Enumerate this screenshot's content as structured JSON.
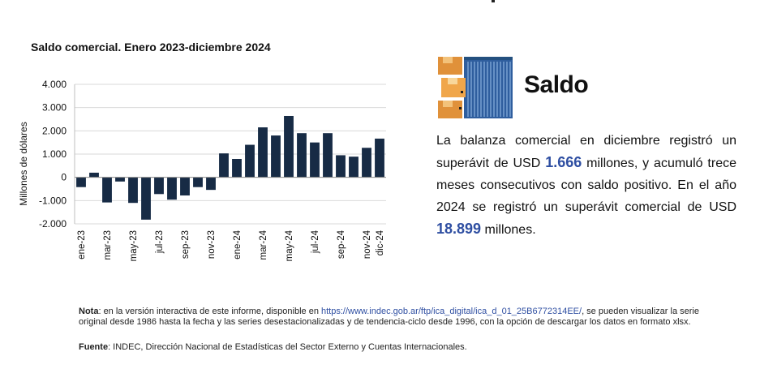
{
  "colors": {
    "bar": "#172b45",
    "highlight": "#2f4fa2",
    "grid": "#d9d9d9",
    "axis": "#333333"
  },
  "chart_data": {
    "type": "bar",
    "title": "Saldo comercial. Enero 2023-diciembre 2024",
    "xlabel": "",
    "ylabel": "Millones de dólares",
    "ylim": [
      -2000,
      4000
    ],
    "yticks": [
      -2000,
      -1000,
      0,
      1000,
      2000,
      3000,
      4000
    ],
    "ytick_labels": [
      "-2.000",
      "-1.000",
      "0",
      "1.000",
      "2.000",
      "3.000",
      "4.000"
    ],
    "categories": [
      "ene-23",
      "feb-23",
      "mar-23",
      "abr-23",
      "may-23",
      "jun-23",
      "jul-23",
      "ago-23",
      "sep-23",
      "oct-23",
      "nov-23",
      "dic-23",
      "ene-24",
      "feb-24",
      "mar-24",
      "abr-24",
      "may-24",
      "jun-24",
      "jul-24",
      "ago-24",
      "sep-24",
      "oct-24",
      "nov-24",
      "dic-24"
    ],
    "xtick_labels": [
      "ene-23",
      "",
      "mar-23",
      "",
      "may-23",
      "",
      "jul-23",
      "",
      "sep-23",
      "",
      "nov-23",
      "",
      "ene-24",
      "",
      "mar-24",
      "",
      "may-24",
      "",
      "jul-24",
      "",
      "sep-24",
      "",
      "nov-24",
      "dic-24"
    ],
    "values": [
      -420,
      200,
      -1080,
      -180,
      -1100,
      -1820,
      -720,
      -960,
      -780,
      -420,
      -540,
      1030,
      790,
      1400,
      2150,
      1800,
      2640,
      1900,
      1500,
      1900,
      950,
      890,
      1270,
      1666
    ],
    "grid": true,
    "legend": "none"
  },
  "side": {
    "icon": "shipping-containers-icon",
    "title": "Saldo",
    "text_1": "La balanza comercial en diciembre registró un superávit de USD ",
    "value_1": "1.666",
    "text_2": " millones, y acumuló trece meses consecutivos con saldo positivo. En el año 2024 se registró un superávit comercial de USD ",
    "value_2": "18.899",
    "text_3": " millones."
  },
  "note": {
    "label": "Nota",
    "text_1": ": en la versión interactiva de este informe, disponible en ",
    "url": "https://www.indec.gob.ar/ftp/ica_digital/ica_d_01_25B6772314EE/",
    "text_2": ", se pueden visualizar la serie original desde 1986 hasta la fecha y las series desestacionalizadas y de tendencia-ciclo desde 1996, con la opción de descargar los datos en formato xlsx."
  },
  "source": {
    "label": "Fuente",
    "text": ": INDEC, Dirección Nacional de Estadísticas del Sector Externo y Cuentas Internacionales."
  }
}
